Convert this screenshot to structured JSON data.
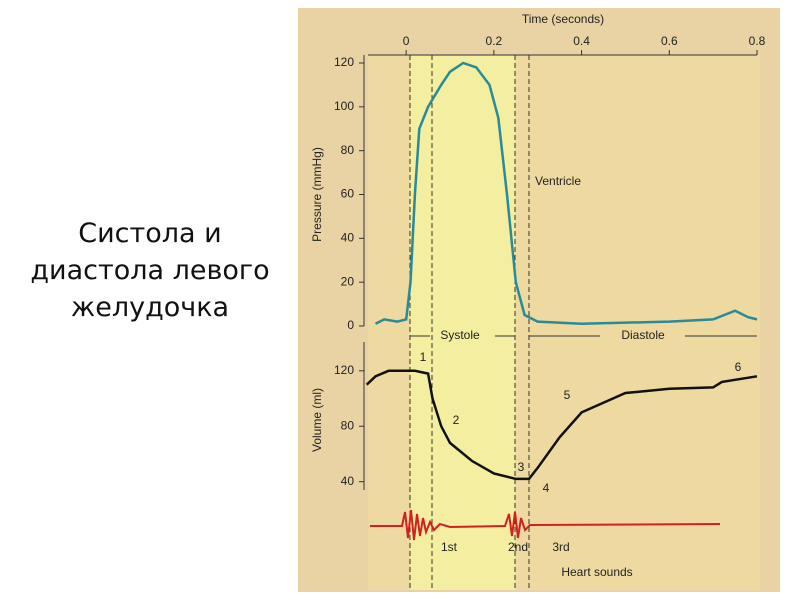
{
  "slide_title": "Систола и диастола левого желудочка",
  "chart_data": [
    {
      "type": "line",
      "title": "Time (seconds)",
      "y_label": "Pressure (mmHg)",
      "color": "#2a8a9a",
      "x": [
        -0.07,
        -0.05,
        -0.02,
        0,
        0.01,
        0.02,
        0.03,
        0.05,
        0.08,
        0.1,
        0.13,
        0.16,
        0.19,
        0.21,
        0.23,
        0.25,
        0.27,
        0.3,
        0.4,
        0.6,
        0.7,
        0.75,
        0.78,
        0.8
      ],
      "values": [
        1,
        3,
        2,
        3,
        20,
        60,
        90,
        100,
        110,
        116,
        120,
        118,
        110,
        95,
        60,
        20,
        5,
        2,
        1,
        2,
        3,
        7,
        4,
        3
      ],
      "xlim": [
        -0.087,
        0.8
      ],
      "xticks": [
        0,
        0.2,
        0.4,
        0.6,
        0.8
      ],
      "ylim": [
        0,
        120
      ],
      "yticks": [
        0,
        20,
        40,
        60,
        80,
        100,
        120
      ],
      "annotations": [
        "Ventricle",
        "Systole",
        "Diastole"
      ]
    },
    {
      "type": "line",
      "y_label": "Volume (ml)",
      "color": "#111",
      "x": [
        -0.09,
        -0.07,
        -0.04,
        0.02,
        0.05,
        0.06,
        0.08,
        0.1,
        0.15,
        0.2,
        0.25,
        0.28,
        0.3,
        0.35,
        0.4,
        0.5,
        0.6,
        0.7,
        0.72,
        0.8
      ],
      "values": [
        110,
        116,
        120,
        120,
        118,
        100,
        80,
        68,
        55,
        46,
        42,
        42,
        50,
        72,
        90,
        104,
        107,
        108,
        112,
        116
      ],
      "xlim": [
        -0.087,
        0.8
      ],
      "ylim": [
        34,
        135
      ],
      "yticks": [
        40,
        80,
        120
      ],
      "annotations": [
        "1",
        "2",
        "3",
        "4",
        "5",
        "6",
        "1st",
        "2nd",
        "3rd",
        "Heart sounds"
      ]
    }
  ]
}
